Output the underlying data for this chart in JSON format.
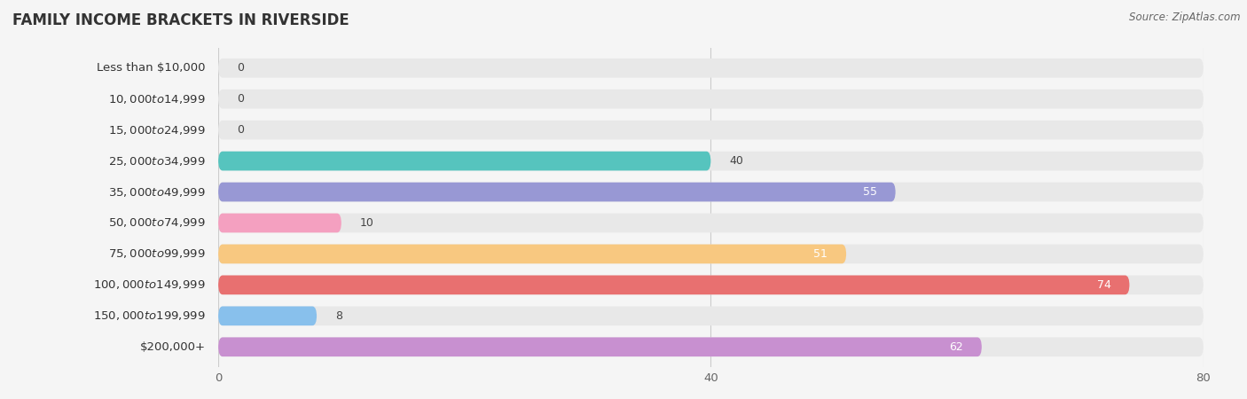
{
  "title": "FAMILY INCOME BRACKETS IN RIVERSIDE",
  "source": "Source: ZipAtlas.com",
  "categories": [
    "Less than $10,000",
    "$10,000 to $14,999",
    "$15,000 to $24,999",
    "$25,000 to $34,999",
    "$35,000 to $49,999",
    "$50,000 to $74,999",
    "$75,000 to $99,999",
    "$100,000 to $149,999",
    "$150,000 to $199,999",
    "$200,000+"
  ],
  "values": [
    0,
    0,
    0,
    40,
    55,
    10,
    51,
    74,
    8,
    62
  ],
  "bar_colors": [
    "#F2A0A2",
    "#A8C4EE",
    "#C8A8E0",
    "#56C4BE",
    "#9898D4",
    "#F4A0C0",
    "#F8C880",
    "#E87070",
    "#88C0EC",
    "#C890D0"
  ],
  "xlim": [
    0,
    80
  ],
  "xticks": [
    0,
    40,
    80
  ],
  "background_color": "#f5f5f5",
  "bar_bg_color": "#e8e8e8",
  "title_fontsize": 12,
  "label_fontsize": 9.5,
  "value_fontsize": 9,
  "source_fontsize": 8.5
}
